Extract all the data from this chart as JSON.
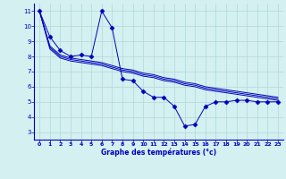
{
  "xlabel": "Graphe des températures (°c)",
  "background_color": "#d4f0f0",
  "grid_color": "#b0d8d8",
  "line_color": "#0000bb",
  "axis_color": "#0000bb",
  "x_ticks": [
    0,
    1,
    2,
    3,
    4,
    5,
    6,
    7,
    8,
    9,
    10,
    11,
    12,
    13,
    14,
    15,
    16,
    17,
    18,
    19,
    20,
    21,
    22,
    23
  ],
  "y_ticks": [
    3,
    4,
    5,
    6,
    7,
    8,
    9,
    10,
    11
  ],
  "ylim": [
    2.5,
    11.5
  ],
  "xlim": [
    -0.5,
    23.5
  ],
  "series": [
    [
      11.0,
      9.3,
      8.4,
      8.0,
      8.1,
      8.0,
      11.0,
      9.9,
      6.5,
      6.4,
      5.7,
      5.3,
      5.3,
      4.7,
      3.4,
      3.5,
      4.7,
      5.0,
      5.0,
      5.1,
      5.1,
      5.0,
      5.0,
      5.0
    ],
    [
      11.0,
      8.7,
      8.1,
      7.9,
      7.8,
      7.7,
      7.6,
      7.4,
      7.2,
      7.1,
      6.9,
      6.8,
      6.6,
      6.5,
      6.3,
      6.2,
      6.0,
      5.9,
      5.8,
      5.7,
      5.6,
      5.5,
      5.4,
      5.3
    ],
    [
      11.0,
      8.6,
      8.0,
      7.8,
      7.7,
      7.6,
      7.5,
      7.3,
      7.1,
      7.0,
      6.8,
      6.7,
      6.5,
      6.4,
      6.2,
      6.1,
      5.9,
      5.8,
      5.7,
      5.6,
      5.5,
      5.4,
      5.3,
      5.2
    ],
    [
      11.0,
      8.5,
      7.9,
      7.7,
      7.6,
      7.5,
      7.4,
      7.2,
      7.0,
      6.9,
      6.7,
      6.6,
      6.4,
      6.3,
      6.1,
      6.0,
      5.8,
      5.7,
      5.6,
      5.5,
      5.4,
      5.3,
      5.2,
      5.1
    ]
  ]
}
